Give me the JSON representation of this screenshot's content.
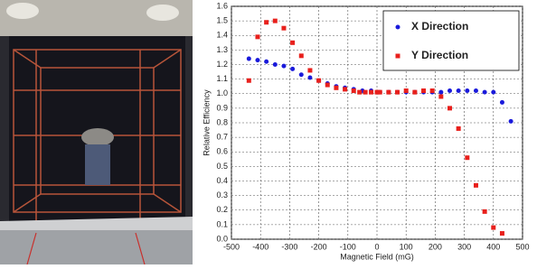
{
  "chart_data": {
    "type": "scatter",
    "x_label": "Magnetic Field (mG)",
    "y_label": "Relative Efficiency",
    "xlim": [
      -500,
      500
    ],
    "xticks": [
      -500,
      -400,
      -300,
      -200,
      -100,
      0,
      100,
      200,
      300,
      400,
      500
    ],
    "ylim": [
      0,
      1.6
    ],
    "yticks": [
      {
        "value": 0,
        "label": "0.0"
      },
      0.1,
      0.2,
      0.3,
      0.4,
      0.5,
      0.6,
      0.7,
      0.8,
      0.9,
      {
        "value": 1,
        "label": "1.0"
      },
      1.1,
      1.2,
      1.3,
      1.4,
      1.5,
      1.6
    ],
    "grid": true,
    "legend": "upper right",
    "series": [
      {
        "name": "X Direction",
        "color": "#1a1adb",
        "marker": "circle",
        "x": [
          -440,
          -410,
          -380,
          -350,
          -320,
          -290,
          -260,
          -230,
          -200,
          -170,
          -140,
          -110,
          -80,
          -50,
          -20,
          10,
          40,
          70,
          100,
          130,
          160,
          190,
          220,
          250,
          280,
          310,
          340,
          370,
          400,
          430,
          460
        ],
        "values": [
          1.24,
          1.23,
          1.22,
          1.2,
          1.19,
          1.17,
          1.13,
          1.11,
          1.09,
          1.07,
          1.05,
          1.04,
          1.03,
          1.02,
          1.02,
          1.01,
          1.01,
          1.01,
          1.01,
          1.01,
          1.01,
          1.01,
          1.01,
          1.02,
          1.02,
          1.02,
          1.02,
          1.01,
          1.01,
          0.94,
          0.81
        ]
      },
      {
        "name": "Y Direction",
        "color": "#e8201c",
        "marker": "square",
        "x": [
          -440,
          -410,
          -380,
          -350,
          -320,
          -290,
          -260,
          -230,
          -200,
          -170,
          -140,
          -110,
          -80,
          -60,
          -40,
          -20,
          0,
          10,
          40,
          70,
          100,
          130,
          160,
          190,
          220,
          250,
          280,
          310,
          340,
          370,
          400,
          430
        ],
        "values": [
          1.09,
          1.39,
          1.49,
          1.5,
          1.45,
          1.35,
          1.26,
          1.16,
          1.09,
          1.06,
          1.04,
          1.03,
          1.02,
          1.01,
          1.01,
          1.01,
          1.01,
          1.01,
          1.01,
          1.01,
          1.02,
          1.01,
          1.02,
          1.02,
          0.98,
          0.9,
          0.76,
          0.56,
          0.37,
          0.19,
          0.08,
          0.04
        ]
      }
    ]
  }
}
